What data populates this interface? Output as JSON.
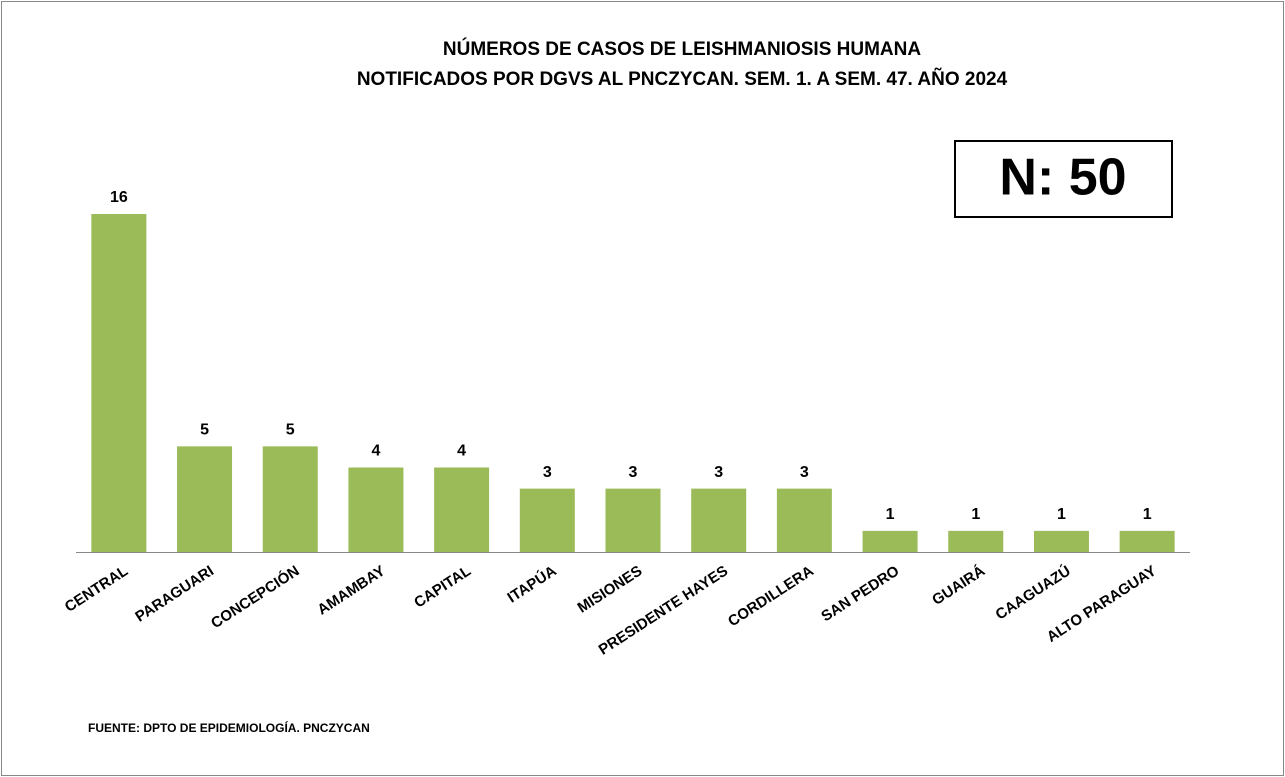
{
  "chart_data": {
    "type": "bar",
    "title": [
      "NÚMEROS DE CASOS DE LEISHMANIOSIS HUMANA",
      "NOTIFICADOS POR DGVS AL PNCZYCAN. SEM. 1. A SEM. 47. AÑO 2024"
    ],
    "annotation": "N: 50",
    "source": "FUENTE: DPTO DE EPIDEMIOLOGÍA. PNCZYCAN",
    "categories": [
      "CENTRAL",
      "PARAGUARI",
      "CONCEPCIÓN",
      "AMAMBAY",
      "CAPITAL",
      "ITAPÚA",
      "MISIONES",
      "PRESIDENTE HAYES",
      "CORDILLERA",
      "SAN PEDRO",
      "GUAIRÁ",
      "CAAGUAZÚ",
      "ALTO PARAGUAY"
    ],
    "values": [
      16,
      5,
      5,
      4,
      4,
      3,
      3,
      3,
      3,
      1,
      1,
      1,
      1
    ],
    "color": "#9bbb59"
  }
}
